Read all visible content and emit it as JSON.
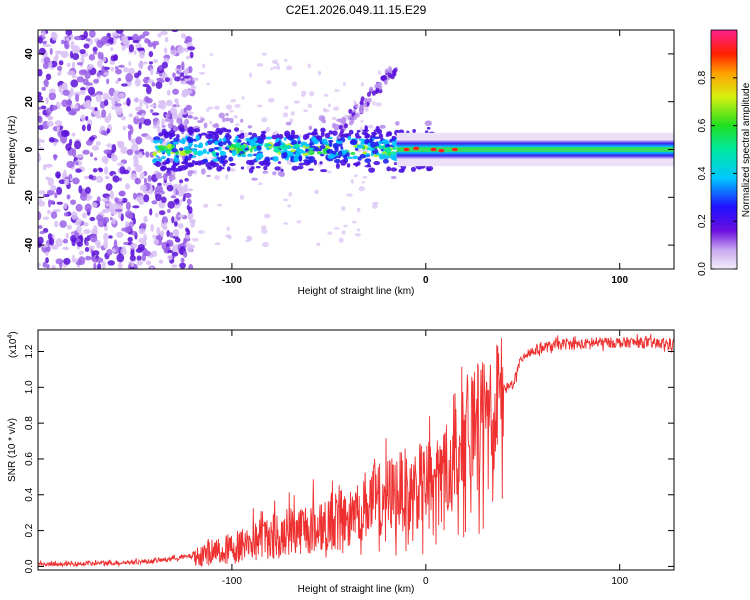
{
  "title": "C2E1.2026.049.11.15.E29",
  "chart_data": [
    {
      "type": "heatmap",
      "name": "spectrogram",
      "xlabel": "Height of straight line (km)",
      "ylabel": "Frequency (Hz)",
      "xlim": [
        -200,
        128
      ],
      "ylim": [
        -50,
        50
      ],
      "xticks": [
        -100,
        0,
        100
      ],
      "yticks": [
        -40,
        -20,
        0,
        20,
        40
      ],
      "colorbar": {
        "label": "Normalized spectral amplitude",
        "range": [
          0,
          1
        ],
        "ticks": [
          0.0,
          0.2,
          0.4,
          0.6,
          0.8
        ]
      },
      "features": [
        {
          "region": "x < -120",
          "description": "broadband low-amplitude noise across all frequencies"
        },
        {
          "region": "-140 to 0",
          "frequency_center": 0,
          "description": "amplitude rises toward center line, spread about +/-10 Hz"
        },
        {
          "region": "0 to 128",
          "frequency_center": 0,
          "description": "narrow band near 0 Hz, amplitude ~0.5-0.7"
        }
      ]
    },
    {
      "type": "line",
      "name": "snr",
      "xlabel": "Height of straight line (km)",
      "ylabel": "SNR (10 * v/v)",
      "yscale_label": "(x10",
      "yscale_exp": "4",
      "xlim": [
        -200,
        128
      ],
      "ylim": [
        -0.02,
        1.32
      ],
      "xticks": [
        -100,
        0,
        100
      ],
      "yticks": [
        0.0,
        0.2,
        0.4,
        0.6,
        0.8,
        1.0,
        1.2
      ],
      "color": "#ee3030",
      "series": [
        {
          "name": "SNR",
          "x": [
            -200,
            -160,
            -140,
            -120,
            -100,
            -90,
            -80,
            -70,
            -60,
            -50,
            -40,
            -30,
            -20,
            -10,
            0,
            10,
            20,
            30,
            40,
            45,
            50,
            60,
            70,
            80,
            90,
            100,
            110,
            128
          ],
          "values": [
            0.01,
            0.02,
            0.03,
            0.06,
            0.1,
            0.14,
            0.18,
            0.2,
            0.22,
            0.25,
            0.3,
            0.35,
            0.4,
            0.43,
            0.45,
            0.55,
            0.72,
            0.88,
            0.98,
            1.02,
            1.18,
            1.22,
            1.24,
            1.24,
            1.25,
            1.25,
            1.25,
            1.24
          ]
        }
      ]
    }
  ]
}
